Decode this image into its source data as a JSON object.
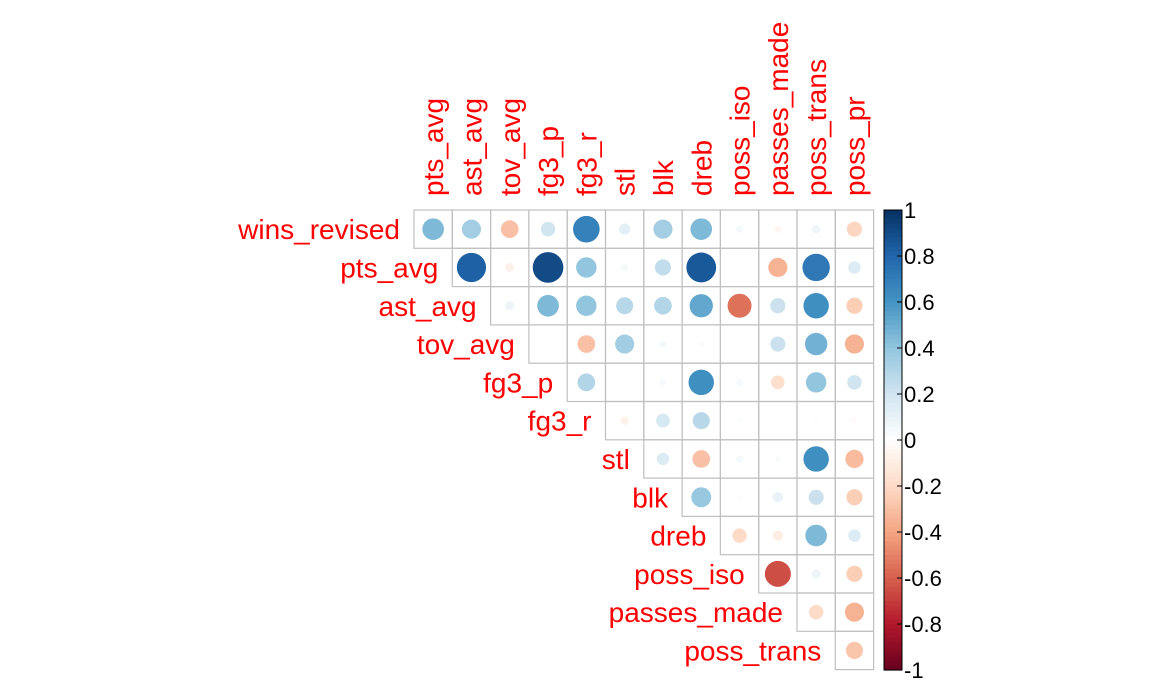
{
  "chart_data": {
    "type": "heatmap",
    "style": "corrplot-circle-upper",
    "rows": [
      "wins_revised",
      "pts_avg",
      "ast_avg",
      "tov_avg",
      "fg3_p",
      "fg3_r",
      "stl",
      "blk",
      "dreb",
      "poss_iso",
      "passes_made",
      "poss_trans"
    ],
    "columns": [
      "pts_avg",
      "ast_avg",
      "tov_avg",
      "fg3_p",
      "fg3_r",
      "stl",
      "blk",
      "dreb",
      "poss_iso",
      "passes_made",
      "poss_trans",
      "poss_pr"
    ],
    "matrix": [
      [
        0.45,
        0.35,
        -0.3,
        0.2,
        0.68,
        0.12,
        0.35,
        0.45,
        0.05,
        -0.05,
        0.07,
        -0.22
      ],
      [
        null,
        0.82,
        -0.08,
        0.9,
        0.4,
        0.05,
        0.25,
        0.85,
        0.0,
        -0.35,
        0.72,
        0.15
      ],
      [
        null,
        null,
        0.08,
        0.45,
        0.4,
        0.28,
        0.3,
        0.52,
        -0.55,
        0.22,
        0.62,
        -0.25
      ],
      [
        null,
        null,
        null,
        0.0,
        -0.3,
        0.35,
        0.05,
        0.03,
        0.0,
        0.22,
        0.48,
        -0.35
      ],
      [
        null,
        null,
        null,
        null,
        0.3,
        0.0,
        0.04,
        0.62,
        0.05,
        -0.18,
        0.4,
        0.2
      ],
      [
        null,
        null,
        null,
        null,
        null,
        -0.07,
        0.18,
        0.28,
        0.02,
        0.0,
        0.02,
        -0.03
      ],
      [
        null,
        null,
        null,
        null,
        null,
        null,
        0.15,
        -0.3,
        0.05,
        0.03,
        0.62,
        -0.32
      ],
      [
        null,
        null,
        null,
        null,
        null,
        null,
        null,
        0.38,
        0.02,
        0.1,
        0.22,
        -0.25
      ],
      [
        null,
        null,
        null,
        null,
        null,
        null,
        null,
        null,
        -0.2,
        -0.1,
        0.45,
        0.15
      ],
      [
        null,
        null,
        null,
        null,
        null,
        null,
        null,
        null,
        null,
        -0.65,
        0.08,
        -0.25
      ],
      [
        null,
        null,
        null,
        null,
        null,
        null,
        null,
        null,
        null,
        null,
        -0.2,
        -0.35
      ],
      [
        null,
        null,
        null,
        null,
        null,
        null,
        null,
        null,
        null,
        null,
        null,
        -0.28
      ]
    ],
    "colorbar": {
      "ticks": [
        "1",
        "0.8",
        "0.6",
        "0.4",
        "0.2",
        "0",
        "-0.2",
        "-0.4",
        "-0.6",
        "-0.8",
        "-1"
      ],
      "range": [
        -1,
        1
      ]
    },
    "colors": {
      "label": "#ff0000",
      "grid": "#c0c0c0",
      "negative_end": "#67001f",
      "positive_end": "#053061",
      "neutral": "#ffffff"
    }
  }
}
